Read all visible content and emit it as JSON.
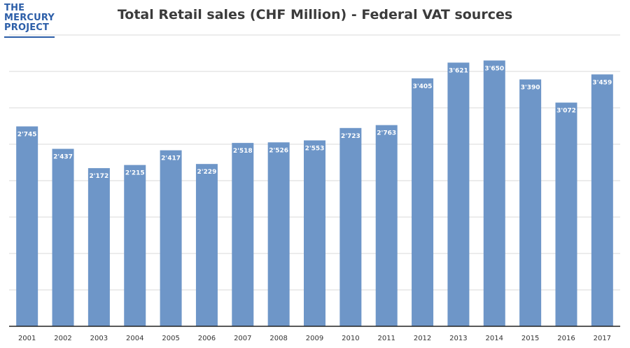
{
  "logo": {
    "line1": "THE",
    "line2": "MERCURY",
    "line3": "PROJECT"
  },
  "chart_data": {
    "type": "bar",
    "title": "Total Retail sales (CHF Million) - Federal VAT sources",
    "xlabel": "",
    "ylabel": "",
    "ylim": [
      0,
      4000
    ],
    "grid": true,
    "bar_color": "#6e96c8",
    "categories": [
      "2001",
      "2002",
      "2003",
      "2004",
      "2005",
      "2006",
      "2007",
      "2008",
      "2009",
      "2010",
      "2011",
      "2012",
      "2013",
      "2014",
      "2015",
      "2016",
      "2017"
    ],
    "values": [
      2745,
      2437,
      2172,
      2215,
      2417,
      2229,
      2518,
      2526,
      2553,
      2723,
      2763,
      3405,
      3621,
      3650,
      3390,
      3072,
      3459
    ],
    "data_labels": [
      "2'745",
      "2'437",
      "2'172",
      "2'215",
      "2'417",
      "2'229",
      "2'518",
      "2'526",
      "2'553",
      "2'723",
      "2'763",
      "3'405",
      "3'621",
      "3'650",
      "3'390",
      "3'072",
      "3'459"
    ]
  }
}
